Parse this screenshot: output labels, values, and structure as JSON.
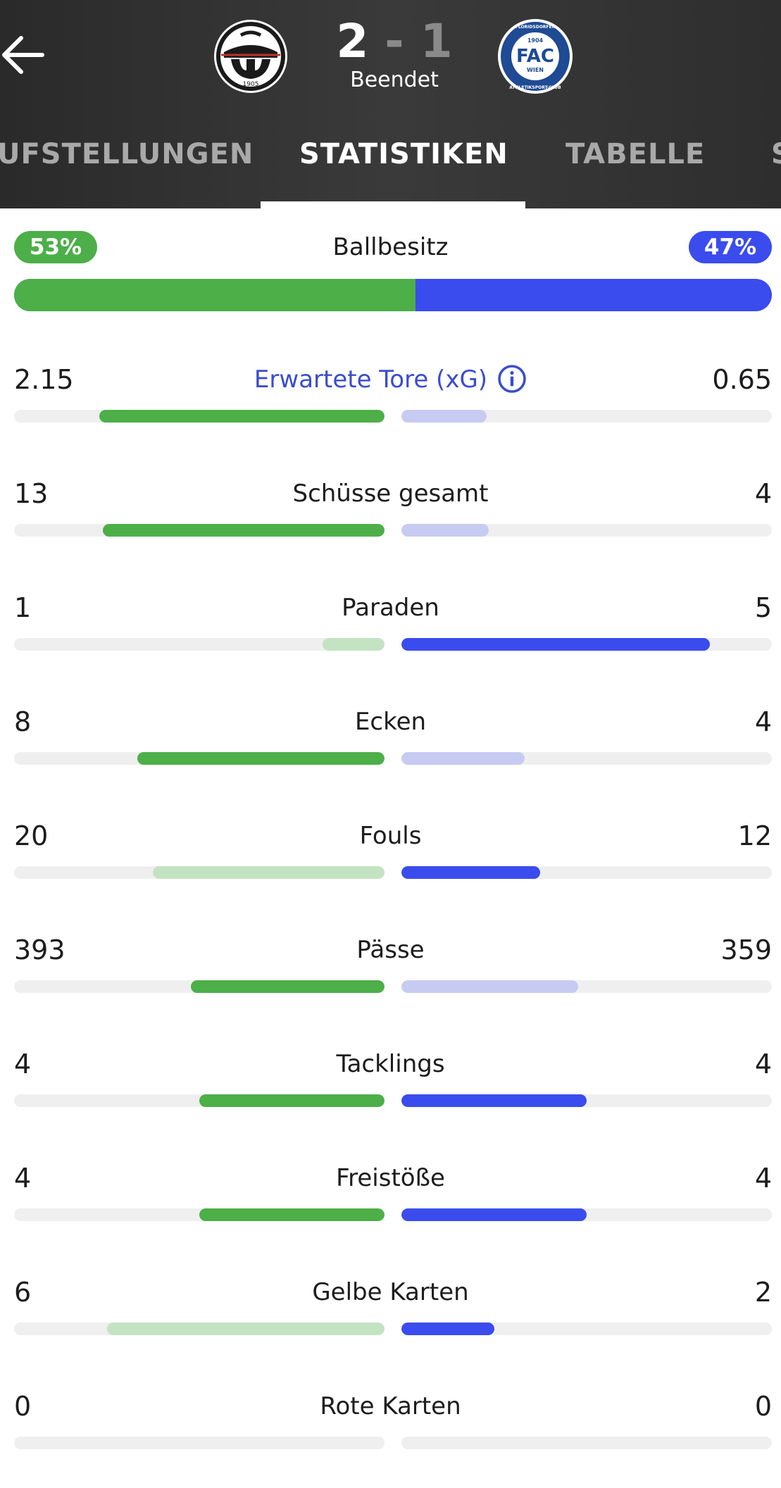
{
  "match": {
    "home_score": "2",
    "separator": "-",
    "away_score": "1",
    "status": "Beendet",
    "home_crest_text": "1905",
    "away_crest_text": "FAC",
    "away_crest_sub": "WIEN",
    "away_crest_year": "1904",
    "away_crest_ring_top": "FLORIDSDORFER",
    "away_crest_ring_bottom": "ATHLETIKSPORT-CLUB"
  },
  "tabs": [
    {
      "label": "UFSTELLUNGEN",
      "active": false
    },
    {
      "label": "STATISTIKEN",
      "active": true
    },
    {
      "label": "TABELLE",
      "active": false
    },
    {
      "label": "S",
      "active": false
    }
  ],
  "colors": {
    "home": "#4caf48",
    "home_light": "#c4e3c2",
    "away": "#3a4ced",
    "away_light": "#c7cbf2"
  },
  "possession": {
    "label": "Ballbesitz",
    "home": "53%",
    "away": "47%",
    "home_fraction": 0.53
  },
  "stats": [
    {
      "label": "Erwartete Tore (xG)",
      "home": "2.15",
      "away": "0.65",
      "home_fraction": 0.77,
      "away_fraction": 0.23,
      "leader": "home",
      "info": true
    },
    {
      "label": "Schüsse gesamt",
      "home": "13",
      "away": "4",
      "home_fraction": 0.76,
      "away_fraction": 0.235,
      "leader": "home"
    },
    {
      "label": "Paraden",
      "home": "1",
      "away": "5",
      "home_fraction": 0.167,
      "away_fraction": 0.833,
      "leader": "away"
    },
    {
      "label": "Ecken",
      "home": "8",
      "away": "4",
      "home_fraction": 0.667,
      "away_fraction": 0.333,
      "leader": "home"
    },
    {
      "label": "Fouls",
      "home": "20",
      "away": "12",
      "home_fraction": 0.625,
      "away_fraction": 0.375,
      "leader": "away"
    },
    {
      "label": "Pässe",
      "home": "393",
      "away": "359",
      "home_fraction": 0.523,
      "away_fraction": 0.477,
      "leader": "home"
    },
    {
      "label": "Tacklings",
      "home": "4",
      "away": "4",
      "home_fraction": 0.5,
      "away_fraction": 0.5,
      "leader": "both"
    },
    {
      "label": "Freistöße",
      "home": "4",
      "away": "4",
      "home_fraction": 0.5,
      "away_fraction": 0.5,
      "leader": "both"
    },
    {
      "label": "Gelbe Karten",
      "home": "6",
      "away": "2",
      "home_fraction": 0.75,
      "away_fraction": 0.25,
      "leader": "away"
    },
    {
      "label": "Rote Karten",
      "home": "0",
      "away": "0",
      "home_fraction": 0,
      "away_fraction": 0,
      "leader": "none"
    }
  ]
}
